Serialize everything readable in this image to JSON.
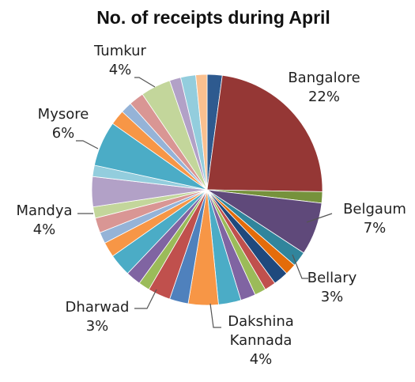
{
  "chart_data": {
    "type": "pie",
    "title": "No. of receipts during April",
    "slices": [
      {
        "value": 2,
        "color": "#2e5a8f"
      },
      {
        "value": 22,
        "color": "#953735",
        "label": "Bangalore",
        "percent": "22%"
      },
      {
        "value": 1.5,
        "color": "#76923c"
      },
      {
        "value": 7,
        "color": "#5f497a",
        "label": "Belgaum",
        "percent": "7%"
      },
      {
        "value": 2,
        "color": "#31859c"
      },
      {
        "value": 1.5,
        "color": "#e46c0a"
      },
      {
        "value": 2,
        "color": "#1f497d"
      },
      {
        "value": 1.5,
        "color": "#c0504d"
      },
      {
        "value": 1.5,
        "color": "#9bbb59"
      },
      {
        "value": 2,
        "color": "#8064a2"
      },
      {
        "value": 3,
        "color": "#4bacc6",
        "label": "Bellary",
        "percent": "3%"
      },
      {
        "value": 4,
        "color": "#f79646",
        "label": "Dakshina Kannada",
        "percent": "4%"
      },
      {
        "value": 2.5,
        "color": "#4f81bd"
      },
      {
        "value": 3,
        "color": "#c0504d",
        "label": "Dharwad",
        "percent": "3%"
      },
      {
        "value": 1.5,
        "color": "#9bbb59"
      },
      {
        "value": 2,
        "color": "#8064a2"
      },
      {
        "value": 3,
        "color": "#4bacc6"
      },
      {
        "value": 2,
        "color": "#f79646"
      },
      {
        "value": 1.5,
        "color": "#95b3d7"
      },
      {
        "value": 2,
        "color": "#d99694"
      },
      {
        "value": 1.5,
        "color": "#c3d69b"
      },
      {
        "value": 4,
        "color": "#b2a1c7",
        "label": "Mandya",
        "percent": "4%"
      },
      {
        "value": 1.5,
        "color": "#93cddd"
      },
      {
        "value": 6,
        "color": "#4bacc6",
        "label": "Mysore",
        "percent": "6%"
      },
      {
        "value": 2,
        "color": "#f79646"
      },
      {
        "value": 1.5,
        "color": "#95b3d7"
      },
      {
        "value": 2,
        "color": "#d99694"
      },
      {
        "value": 4,
        "color": "#c3d69b",
        "label": "Tumkur",
        "percent": "4%"
      },
      {
        "value": 1.5,
        "color": "#b2a1c7"
      },
      {
        "value": 2,
        "color": "#93cddd"
      },
      {
        "value": 1.5,
        "color": "#fac08f"
      }
    ]
  }
}
